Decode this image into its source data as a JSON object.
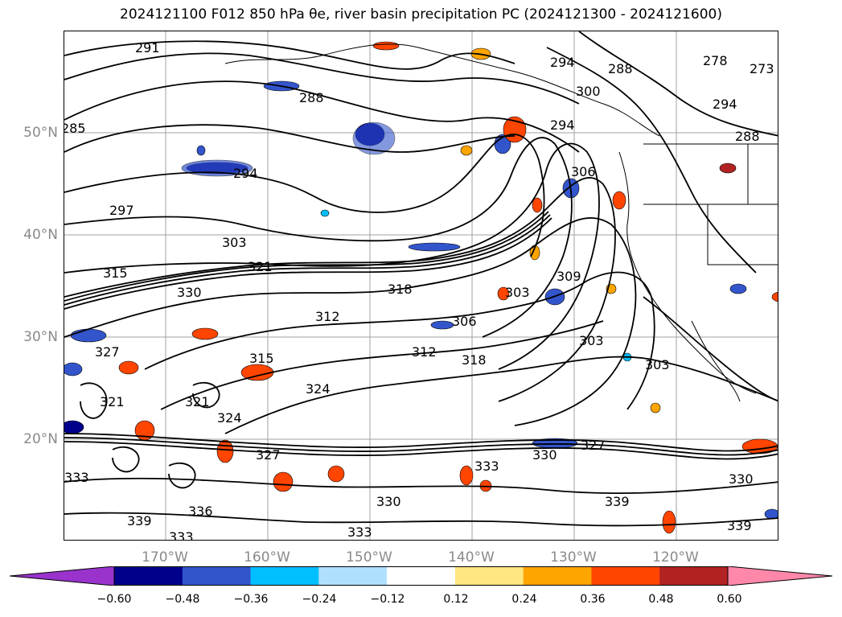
{
  "title": "2024121100 F012 850 hPa θe, river basin precipitation PC (2024121300 - 2024121600)",
  "lat_labels": [
    "50°N",
    "40°N",
    "30°N",
    "20°N"
  ],
  "lon_labels": [
    "170°W",
    "160°W",
    "150°W",
    "140°W",
    "130°W",
    "120°W"
  ],
  "colorbar": {
    "colors": [
      "#9933cc",
      "#00008b",
      "#3355cc",
      "#00bfff",
      "#b0e0ff",
      "#ffffff",
      "#ffe680",
      "#ffa500",
      "#ff4500",
      "#b22222",
      "#ff88aa"
    ],
    "ticks": [
      "−0.60",
      "−0.48",
      "−0.36",
      "−0.24",
      "−0.12",
      "0.12",
      "0.24",
      "0.36",
      "0.48",
      "0.60"
    ]
  },
  "contour_labels": [
    {
      "text": "291"
    },
    {
      "text": "288"
    },
    {
      "text": "285"
    },
    {
      "text": "294"
    },
    {
      "text": "297"
    },
    {
      "text": "303"
    },
    {
      "text": "321"
    },
    {
      "text": "315"
    },
    {
      "text": "330"
    },
    {
      "text": "318"
    },
    {
      "text": "312"
    },
    {
      "text": "306"
    },
    {
      "text": "327"
    },
    {
      "text": "315"
    },
    {
      "text": "324"
    },
    {
      "text": "321"
    },
    {
      "text": "312"
    },
    {
      "text": "318"
    },
    {
      "text": "303"
    },
    {
      "text": "309"
    },
    {
      "text": "303"
    },
    {
      "text": "303"
    },
    {
      "text": "300"
    },
    {
      "text": "294"
    },
    {
      "text": "306"
    },
    {
      "text": "294"
    },
    {
      "text": "288"
    },
    {
      "text": "278"
    },
    {
      "text": "273"
    },
    {
      "text": "294"
    },
    {
      "text": "288"
    },
    {
      "text": "333"
    },
    {
      "text": "330"
    },
    {
      "text": "327"
    },
    {
      "text": "330"
    },
    {
      "text": "339"
    },
    {
      "text": "339"
    },
    {
      "text": "333"
    },
    {
      "text": "330"
    },
    {
      "text": "339"
    },
    {
      "text": "333"
    },
    {
      "text": "336"
    },
    {
      "text": "321"
    },
    {
      "text": "324"
    },
    {
      "text": "333"
    },
    {
      "text": "327"
    }
  ]
}
